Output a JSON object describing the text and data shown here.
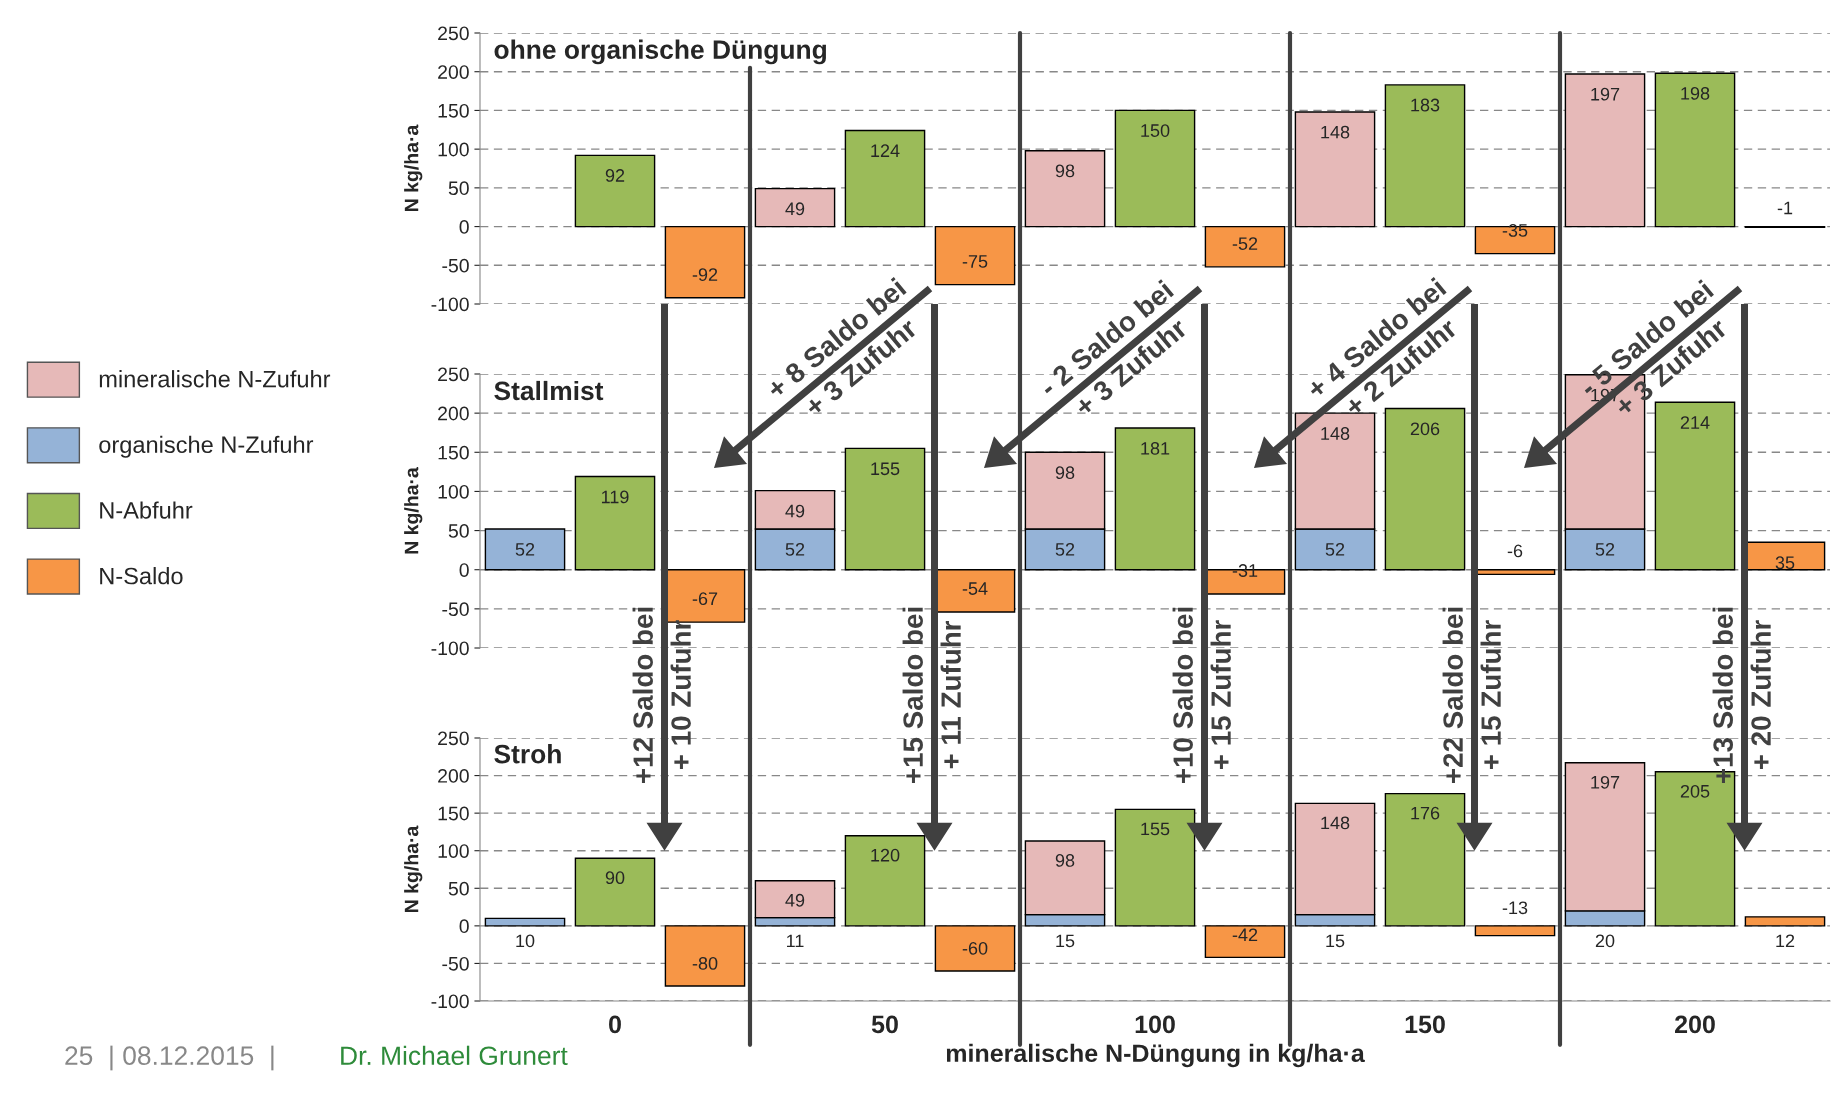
{
  "chart_data": [
    {
      "type": "bar",
      "title": "ohne organische Düngung",
      "ylabel": "N kg/ha·a",
      "stacked": true,
      "grid": "y",
      "tick_labels": "y",
      "categories": [
        null,
        "0",
        null,
        null,
        "50",
        null,
        null,
        "100",
        null,
        null,
        "150",
        null,
        null,
        "200",
        null
      ],
      "ylim": [
        -100,
        250
      ],
      "yticks": [
        -100,
        -50,
        0,
        50,
        100,
        150,
        200,
        250
      ],
      "series": [
        {
          "color": "#e6b9b8",
          "values": [
            null,
            null,
            null,
            49,
            null,
            null,
            98,
            null,
            null,
            148,
            null,
            null,
            197,
            null,
            null
          ],
          "value_labels": [
            null,
            null,
            null,
            "49",
            null,
            null,
            "98",
            null,
            null,
            "148",
            null,
            null,
            "197",
            null,
            null
          ]
        },
        {
          "color": "#9bbb59",
          "values": [
            null,
            92,
            null,
            null,
            124,
            null,
            null,
            150,
            null,
            null,
            183,
            null,
            null,
            198,
            null
          ],
          "value_labels": [
            null,
            "92",
            null,
            null,
            "124",
            null,
            null,
            "150",
            null,
            null,
            "183",
            null,
            null,
            "198",
            null
          ]
        },
        {
          "color": "#f79646",
          "values": [
            null,
            null,
            -92,
            null,
            null,
            -75,
            null,
            null,
            -52,
            null,
            null,
            -35,
            null,
            null,
            -1
          ],
          "value_labels": [
            null,
            null,
            "-92",
            null,
            null,
            "-75",
            null,
            null,
            "-52",
            null,
            null,
            "-35",
            null,
            null,
            "-1"
          ]
        }
      ],
      "annotations": [
        "+ 8 Saldo bei\n+ 3 Zufuhr",
        "- 2 Saldo bei\n+ 3 Zufuhr",
        "+ 4 Saldo bei\n+ 2 Zufuhr",
        "- 5 Saldo bei\n+ 3 Zufuhr"
      ]
    },
    {
      "type": "bar",
      "title": "Stallmist",
      "ylabel": "N kg/ha·a",
      "stacked": true,
      "grid": "y",
      "tick_labels": "y",
      "legend": "left",
      "categories": [
        null,
        "0",
        null,
        null,
        "50",
        null,
        null,
        "100",
        null,
        null,
        "150",
        null,
        null,
        "200",
        null
      ],
      "ylim": [
        -100,
        250
      ],
      "yticks": [
        -100,
        -50,
        0,
        50,
        100,
        150,
        200,
        250
      ],
      "series": [
        {
          "name": "organische N-Zufuhr",
          "color": "#95b3d7",
          "values": [
            52,
            null,
            null,
            52,
            null,
            null,
            52,
            null,
            null,
            52,
            null,
            null,
            52,
            null,
            null
          ],
          "value_labels": [
            "52",
            null,
            null,
            "52",
            null,
            null,
            "52",
            null,
            null,
            "52",
            null,
            null,
            "52",
            null,
            null
          ]
        },
        {
          "name": "mineralische N-Zufuhr",
          "color": "#e6b9b8",
          "values": [
            null,
            null,
            null,
            49,
            null,
            null,
            98,
            null,
            null,
            148,
            null,
            null,
            197,
            null,
            null
          ],
          "value_labels": [
            null,
            null,
            null,
            "49",
            null,
            null,
            "98",
            null,
            null,
            "148",
            null,
            null,
            "197",
            null,
            null
          ]
        },
        {
          "name": "N-Abfuhr",
          "color": "#9bbb59",
          "values": [
            null,
            119,
            null,
            null,
            155,
            null,
            null,
            181,
            null,
            null,
            206,
            null,
            null,
            214,
            null
          ],
          "value_labels": [
            null,
            "119",
            null,
            null,
            "155",
            null,
            null,
            "181",
            null,
            null,
            "206",
            null,
            null,
            "214",
            null
          ]
        },
        {
          "name": "N-Saldo",
          "color": "#f79646",
          "values": [
            null,
            null,
            -67,
            null,
            null,
            -54,
            null,
            null,
            -31,
            null,
            null,
            -6,
            null,
            null,
            35
          ],
          "value_labels": [
            null,
            null,
            "-67",
            null,
            null,
            "-54",
            null,
            null,
            "-31",
            null,
            null,
            "-6",
            null,
            null,
            "35"
          ]
        }
      ],
      "annotations": [
        "+12 Saldo bei\n+ 10 Zufuhr",
        "+15 Saldo bei\n+ 11 Zufuhr",
        "+10 Saldo bei\n+ 15 Zufuhr",
        "+22 Saldo bei\n+ 15 Zufuhr",
        "+13 Saldo bei\n+ 20 Zufuhr"
      ]
    },
    {
      "type": "bar",
      "title": "Stroh",
      "ylabel": "N kg/ha·a",
      "xlabel": "mineralische N-Düngung in kg/ha·a",
      "stacked": true,
      "grid": "y",
      "categories": [
        null,
        "0",
        null,
        null,
        "50",
        null,
        null,
        "100",
        null,
        null,
        "150",
        null,
        null,
        "200",
        null
      ],
      "ylim": [
        -100,
        250
      ],
      "yticks": [
        -100,
        -50,
        0,
        50,
        100,
        150,
        200,
        250
      ],
      "series": [
        {
          "color": "#95b3d7",
          "values": [
            10,
            null,
            null,
            11,
            null,
            null,
            15,
            null,
            null,
            15,
            null,
            null,
            20,
            null,
            null
          ],
          "value_labels": [
            "10",
            null,
            null,
            "11",
            null,
            null,
            "15",
            null,
            null,
            "15",
            null,
            null,
            "20",
            null,
            null
          ]
        },
        {
          "color": "#e6b9b8",
          "values": [
            null,
            null,
            null,
            49,
            null,
            null,
            98,
            null,
            null,
            148,
            null,
            null,
            197,
            null,
            null
          ],
          "value_labels": [
            null,
            null,
            null,
            "49",
            null,
            null,
            "98",
            null,
            null,
            "148",
            null,
            null,
            "197",
            null,
            null
          ]
        },
        {
          "color": "#9bbb59",
          "values": [
            null,
            90,
            null,
            null,
            120,
            null,
            null,
            155,
            null,
            null,
            176,
            null,
            null,
            205,
            null
          ],
          "value_labels": [
            null,
            "90",
            null,
            null,
            "120",
            null,
            null,
            "155",
            null,
            null,
            "176",
            null,
            null,
            "205",
            null
          ]
        },
        {
          "color": "#f79646",
          "values": [
            null,
            null,
            -80,
            null,
            null,
            -60,
            null,
            null,
            -42,
            null,
            null,
            -13,
            null,
            null,
            12
          ],
          "value_labels": [
            null,
            null,
            "-80",
            null,
            null,
            "-60",
            null,
            null,
            "-42",
            null,
            null,
            "-13",
            null,
            null,
            "12"
          ]
        }
      ],
      "annotations": [
        "25  | 08.12.2015  |",
        "Dr. Michael Grunert"
      ]
    }
  ]
}
